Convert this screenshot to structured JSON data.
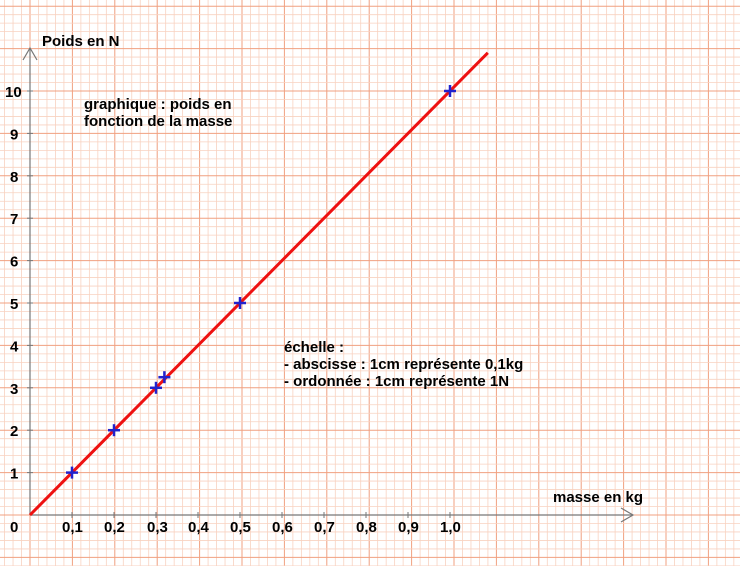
{
  "chart_data": {
    "type": "scatter",
    "title_lines": [
      "graphique : poids en",
      "fonction de la masse"
    ],
    "xlabel": "masse en kg",
    "ylabel": "Poids en N",
    "origin_label": "0",
    "x_ticks": [
      "0,1",
      "0,2",
      "0,3",
      "0,4",
      "0,5",
      "0,6",
      "0,7",
      "0,8",
      "0,9",
      "1,0"
    ],
    "y_ticks": [
      "1",
      "2",
      "3",
      "4",
      "5",
      "6",
      "7",
      "8",
      "9",
      "10"
    ],
    "xlim": [
      0,
      1.1
    ],
    "ylim": [
      0,
      11
    ],
    "grid": true,
    "points": [
      {
        "x": 0.1,
        "y": 1.0
      },
      {
        "x": 0.2,
        "y": 2.0
      },
      {
        "x": 0.3,
        "y": 3.0
      },
      {
        "x": 0.32,
        "y": 3.25
      },
      {
        "x": 0.5,
        "y": 5.0
      },
      {
        "x": 1.0,
        "y": 10.0
      }
    ],
    "fit_line": {
      "x": [
        0,
        1.09
      ],
      "y": [
        0,
        10.9
      ]
    },
    "scale_note": [
      "échelle :",
      "- abscisse : 1cm représente 0,1kg",
      "- ordonnée : 1cm représente 1N"
    ],
    "colors": {
      "line": "#ee1111",
      "marker": "#2222cc",
      "grid_major": "#f0a080",
      "grid_minor": "#f8d2c0",
      "axis": "#777777"
    }
  }
}
